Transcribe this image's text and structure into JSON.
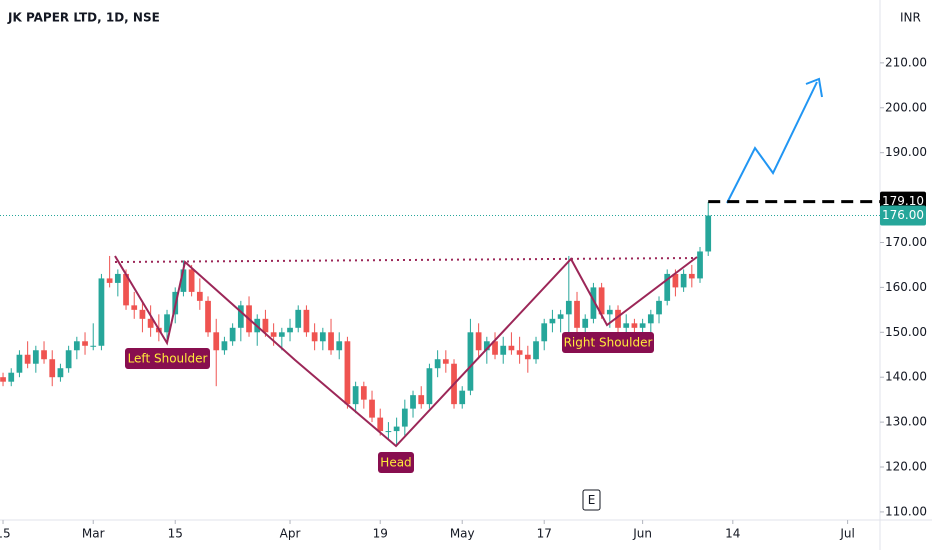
{
  "chart_data": {
    "type": "candlestick",
    "title": "JK PAPER LTD, 1D, NSE",
    "currency": "INR",
    "open": [
      140,
      139,
      141,
      145,
      143,
      146,
      144,
      140,
      142,
      146,
      148,
      147,
      147,
      162,
      161,
      163,
      156,
      155,
      153,
      151,
      150,
      154,
      159,
      164,
      159,
      157,
      150,
      146,
      148,
      151,
      156,
      150,
      153,
      150,
      149,
      150,
      151,
      155,
      150,
      148,
      150,
      146,
      148,
      134,
      138,
      135,
      131,
      128,
      128,
      129,
      133,
      136,
      134,
      142,
      144,
      143,
      134,
      137,
      150,
      146,
      148,
      145,
      147,
      146,
      145,
      144,
      148,
      152,
      153,
      154,
      157,
      151,
      153,
      160,
      154,
      155,
      151,
      152,
      151,
      152,
      154,
      157,
      163,
      160,
      163,
      162,
      168
    ],
    "high": [
      141,
      142,
      146,
      148,
      147,
      148,
      146,
      143,
      147,
      149,
      150,
      152,
      163,
      167,
      164,
      164,
      159,
      157,
      156,
      154,
      155,
      160,
      166,
      165,
      162,
      158,
      153,
      149,
      152,
      157,
      158,
      154,
      155,
      152,
      151,
      153,
      156,
      156,
      152,
      151,
      153,
      150,
      149,
      139,
      139,
      137,
      133,
      130,
      131,
      135,
      137,
      138,
      143,
      146,
      146,
      144,
      138,
      153,
      152,
      149,
      150,
      149,
      150,
      149,
      147,
      149,
      153,
      155,
      155,
      167,
      159,
      154,
      161,
      161,
      156,
      156,
      154,
      153,
      153,
      155,
      158,
      164,
      164,
      164,
      165,
      169,
      179
    ],
    "low": [
      138,
      138,
      140,
      142,
      141,
      143,
      138,
      139,
      141,
      144,
      145,
      146,
      146,
      160,
      158,
      155,
      153,
      150,
      149,
      148,
      148,
      152,
      158,
      158,
      155,
      149,
      138,
      145,
      147,
      148,
      149,
      147,
      149,
      147,
      146,
      148,
      150,
      149,
      146,
      146,
      145,
      144,
      133,
      132,
      133,
      130,
      127,
      126,
      125,
      127,
      131,
      133,
      133,
      140,
      141,
      133,
      133,
      136,
      144,
      143,
      144,
      143,
      145,
      143,
      141,
      143,
      146,
      150,
      150,
      146,
      150,
      146,
      152,
      153,
      151,
      150,
      150,
      150,
      149,
      150,
      152,
      156,
      158,
      159,
      160,
      161,
      167
    ],
    "close": [
      139,
      141,
      145,
      143,
      146,
      144,
      140,
      142,
      146,
      148,
      147,
      147,
      162,
      161,
      163,
      156,
      155,
      153,
      151,
      150,
      154,
      159,
      164,
      159,
      157,
      150,
      146,
      148,
      151,
      156,
      150,
      153,
      150,
      149,
      150,
      151,
      155,
      150,
      148,
      150,
      146,
      148,
      134,
      138,
      135,
      131,
      128,
      128,
      129,
      133,
      136,
      134,
      142,
      144,
      143,
      134,
      137,
      150,
      146,
      148,
      145,
      147,
      146,
      145,
      144,
      148,
      152,
      153,
      154,
      157,
      151,
      153,
      160,
      154,
      155,
      151,
      152,
      151,
      152,
      154,
      157,
      163,
      160,
      163,
      162,
      168,
      176
    ],
    "up_color": "#26a69a",
    "down_color": "#ef5350",
    "ylim": [
      108.2,
      224
    ],
    "yticks": [
      {
        "value": 110,
        "label": "110.00"
      },
      {
        "value": 120,
        "label": "120.00"
      },
      {
        "value": 130,
        "label": "130.00"
      },
      {
        "value": 140,
        "label": "140.00"
      },
      {
        "value": 150,
        "label": "150.00"
      },
      {
        "value": 160,
        "label": "160.00"
      },
      {
        "value": 170,
        "label": "170.00"
      },
      {
        "value": 190,
        "label": "190.00"
      },
      {
        "value": 200,
        "label": "200.00"
      },
      {
        "value": 210,
        "label": "210.00"
      }
    ],
    "xlim": [
      -0.37,
      106.95
    ],
    "xticks": [
      {
        "value": 0,
        "label": "15"
      },
      {
        "value": 11,
        "label": "Mar"
      },
      {
        "value": 21,
        "label": "15"
      },
      {
        "value": 35,
        "label": "Apr"
      },
      {
        "value": 46,
        "label": "19"
      },
      {
        "value": 56,
        "label": "May"
      },
      {
        "value": 66,
        "label": "17"
      },
      {
        "value": 78,
        "label": "Jun"
      },
      {
        "value": 89,
        "label": "14"
      },
      {
        "value": 103,
        "label": "Jul"
      }
    ],
    "price_lines": [
      {
        "value": 179.1,
        "label": "179.10",
        "color": "#000000",
        "style": "dashed"
      },
      {
        "value": 176,
        "label": "176.00",
        "color": "#26a69a",
        "style": "dotted"
      }
    ],
    "annotations": [
      "Left Shoulder",
      "Head",
      "Right Shoulder"
    ],
    "event_marker": "E"
  }
}
